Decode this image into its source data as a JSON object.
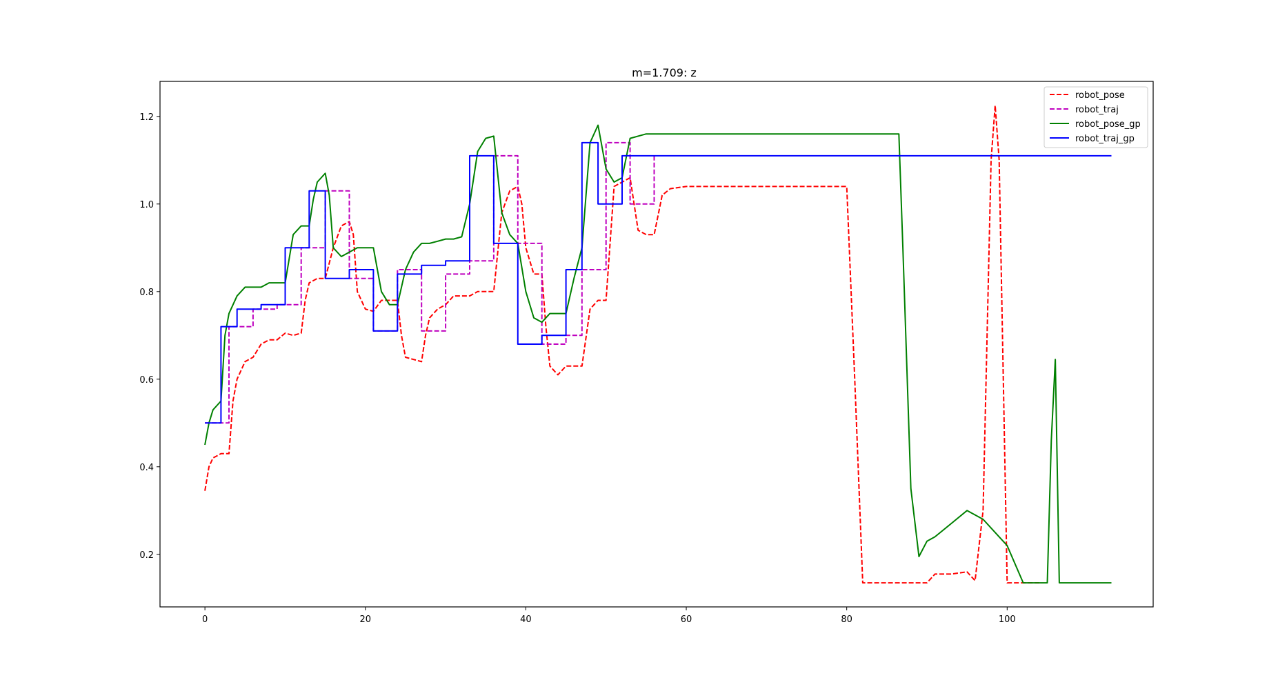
{
  "chart_data": {
    "type": "line",
    "title": "m=1.709: z",
    "xlabel": "",
    "ylabel": "",
    "xlim": [
      -5.6,
      118.2
    ],
    "ylim": [
      0.08,
      1.28
    ],
    "xticks": [
      0,
      20,
      40,
      60,
      80,
      100
    ],
    "xtick_labels": [
      "0",
      "20",
      "40",
      "60",
      "80",
      "100"
    ],
    "yticks": [
      0.2,
      0.4,
      0.6,
      0.8,
      1.0,
      1.2
    ],
    "ytick_labels": [
      "0.2",
      "0.4",
      "0.6",
      "0.8",
      "1.0",
      "1.2"
    ],
    "grid": false,
    "legend": "upper right",
    "series": [
      {
        "name": "robot_pose",
        "color": "#ff0000",
        "dash": "dashed",
        "x": [
          0,
          0.5,
          1,
          2,
          3,
          3.5,
          4,
          5,
          6,
          7,
          8,
          9,
          10,
          11,
          12,
          12.5,
          13,
          14,
          15,
          16,
          17,
          18,
          18.5,
          19,
          20,
          21,
          22,
          23,
          24,
          24.5,
          25,
          26,
          27,
          27.5,
          28,
          29,
          30,
          31,
          32,
          33,
          34,
          35,
          36,
          37,
          38,
          39,
          39.5,
          40,
          41,
          42,
          42.5,
          43,
          44,
          45,
          46,
          47,
          48,
          49,
          50,
          51,
          52,
          53,
          54,
          55,
          56,
          57,
          58,
          60,
          65,
          70,
          75,
          80,
          81,
          82,
          85,
          90,
          91,
          93,
          95,
          96,
          97,
          98,
          98.5,
          99,
          100,
          101,
          104
        ],
        "y": [
          0.345,
          0.4,
          0.42,
          0.43,
          0.43,
          0.55,
          0.6,
          0.64,
          0.65,
          0.68,
          0.69,
          0.69,
          0.705,
          0.7,
          0.705,
          0.78,
          0.82,
          0.83,
          0.83,
          0.9,
          0.95,
          0.96,
          0.93,
          0.8,
          0.76,
          0.755,
          0.78,
          0.78,
          0.78,
          0.7,
          0.65,
          0.645,
          0.64,
          0.7,
          0.74,
          0.76,
          0.77,
          0.79,
          0.79,
          0.79,
          0.8,
          0.8,
          0.8,
          0.98,
          1.03,
          1.04,
          1.0,
          0.9,
          0.84,
          0.84,
          0.72,
          0.63,
          0.61,
          0.63,
          0.63,
          0.63,
          0.76,
          0.78,
          0.78,
          1.04,
          1.05,
          1.06,
          0.94,
          0.93,
          0.93,
          1.02,
          1.035,
          1.04,
          1.04,
          1.04,
          1.04,
          1.04,
          0.6,
          0.135,
          0.135,
          0.135,
          0.155,
          0.155,
          0.16,
          0.14,
          0.3,
          1.1,
          1.225,
          1.1,
          0.135,
          0.135,
          0.135
        ]
      },
      {
        "name": "robot_traj",
        "color": "#bf00bf",
        "dash": "dashed",
        "x": [
          0,
          3,
          3,
          6,
          6,
          9,
          9,
          12,
          12,
          15,
          15,
          18,
          18,
          21,
          21,
          24,
          24,
          27,
          27,
          30,
          30,
          33,
          33,
          36,
          36,
          39,
          39,
          42,
          42,
          45,
          45,
          47,
          47,
          50,
          50,
          53,
          53,
          56,
          56
        ],
        "y": [
          0.5,
          0.5,
          0.72,
          0.72,
          0.76,
          0.76,
          0.77,
          0.77,
          0.9,
          0.9,
          1.03,
          1.03,
          0.83,
          0.83,
          0.71,
          0.71,
          0.85,
          0.85,
          0.71,
          0.71,
          0.84,
          0.84,
          0.87,
          0.87,
          1.11,
          1.11,
          0.91,
          0.91,
          0.68,
          0.68,
          0.7,
          0.7,
          0.85,
          0.85,
          1.14,
          1.14,
          1.0,
          1.0,
          1.11
        ]
      },
      {
        "name": "robot_pose_gp",
        "color": "#008000",
        "dash": "solid",
        "x": [
          0,
          0.5,
          1,
          2,
          2.5,
          3,
          4,
          5,
          6,
          7,
          8,
          9,
          10,
          11,
          12,
          13,
          13.5,
          14,
          15,
          15.5,
          16,
          17,
          18,
          19,
          20,
          21,
          22,
          23,
          24,
          25,
          26,
          27,
          28,
          29,
          30,
          31,
          32,
          33,
          34,
          35,
          36,
          37,
          38,
          39,
          40,
          41,
          42,
          43,
          44,
          45,
          46,
          47,
          48,
          49,
          50,
          51,
          52,
          53,
          55,
          60,
          70,
          80,
          86.5,
          87,
          88,
          89,
          90,
          91,
          93,
          95,
          97,
          99,
          100,
          102,
          104,
          105,
          105.5,
          106,
          106.5,
          113
        ],
        "y": [
          0.45,
          0.5,
          0.53,
          0.55,
          0.7,
          0.75,
          0.79,
          0.81,
          0.81,
          0.81,
          0.82,
          0.82,
          0.82,
          0.93,
          0.95,
          0.95,
          1.01,
          1.05,
          1.07,
          1.02,
          0.9,
          0.88,
          0.89,
          0.9,
          0.9,
          0.9,
          0.8,
          0.77,
          0.77,
          0.85,
          0.89,
          0.91,
          0.91,
          0.915,
          0.92,
          0.92,
          0.925,
          1.0,
          1.12,
          1.15,
          1.155,
          0.98,
          0.93,
          0.91,
          0.8,
          0.74,
          0.73,
          0.75,
          0.75,
          0.75,
          0.83,
          0.9,
          1.14,
          1.18,
          1.08,
          1.05,
          1.06,
          1.15,
          1.16,
          1.16,
          1.16,
          1.16,
          1.16,
          0.9,
          0.35,
          0.195,
          0.23,
          0.24,
          0.27,
          0.3,
          0.28,
          0.24,
          0.22,
          0.135,
          0.135,
          0.135,
          0.46,
          0.645,
          0.135,
          0.135
        ]
      },
      {
        "name": "robot_traj_gp",
        "color": "#0000ff",
        "dash": "solid",
        "x": [
          0,
          2,
          2,
          4,
          4,
          7,
          7,
          10,
          10,
          13,
          13,
          15,
          15,
          18,
          18,
          21,
          21,
          24,
          24,
          27,
          27,
          30,
          30,
          33,
          33,
          36,
          36,
          39,
          39,
          42,
          42,
          45,
          45,
          47,
          47,
          49,
          49,
          52,
          52,
          113
        ],
        "y": [
          0.5,
          0.5,
          0.72,
          0.72,
          0.76,
          0.76,
          0.77,
          0.77,
          0.9,
          0.9,
          1.03,
          1.03,
          0.83,
          0.83,
          0.85,
          0.85,
          0.71,
          0.71,
          0.84,
          0.84,
          0.86,
          0.86,
          0.87,
          0.87,
          1.11,
          1.11,
          0.91,
          0.91,
          0.68,
          0.68,
          0.7,
          0.7,
          0.85,
          0.85,
          1.14,
          1.14,
          1.0,
          1.0,
          1.11,
          1.11
        ]
      }
    ]
  }
}
